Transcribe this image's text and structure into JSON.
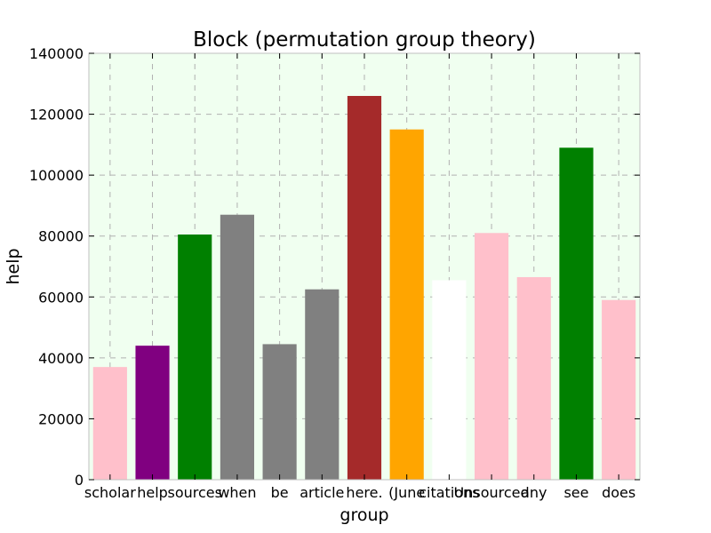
{
  "chart_data": {
    "type": "bar",
    "title": "Block (permutation group theory)",
    "xlabel": "group",
    "ylabel": "help",
    "ylim": [
      0,
      140000
    ],
    "yticks": [
      0,
      20000,
      40000,
      60000,
      80000,
      100000,
      120000,
      140000
    ],
    "grid": true,
    "background": "#f0fff0",
    "categories": [
      "scholar",
      "help",
      "sources",
      "when",
      "be",
      "article",
      "here.",
      "(June",
      "citations",
      "Unsourced",
      "any",
      "see",
      "does"
    ],
    "values": [
      37000,
      44000,
      80500,
      87000,
      44500,
      62500,
      126000,
      115000,
      65500,
      81000,
      66500,
      109000,
      59000
    ],
    "colors": [
      "#ffc0cb",
      "#800080",
      "#008000",
      "#808080",
      "#808080",
      "#808080",
      "#a52a2a",
      "#ffa500",
      "#ffffff",
      "#ffc0cb",
      "#ffc0cb",
      "#008000",
      "#ffc0cb"
    ]
  }
}
